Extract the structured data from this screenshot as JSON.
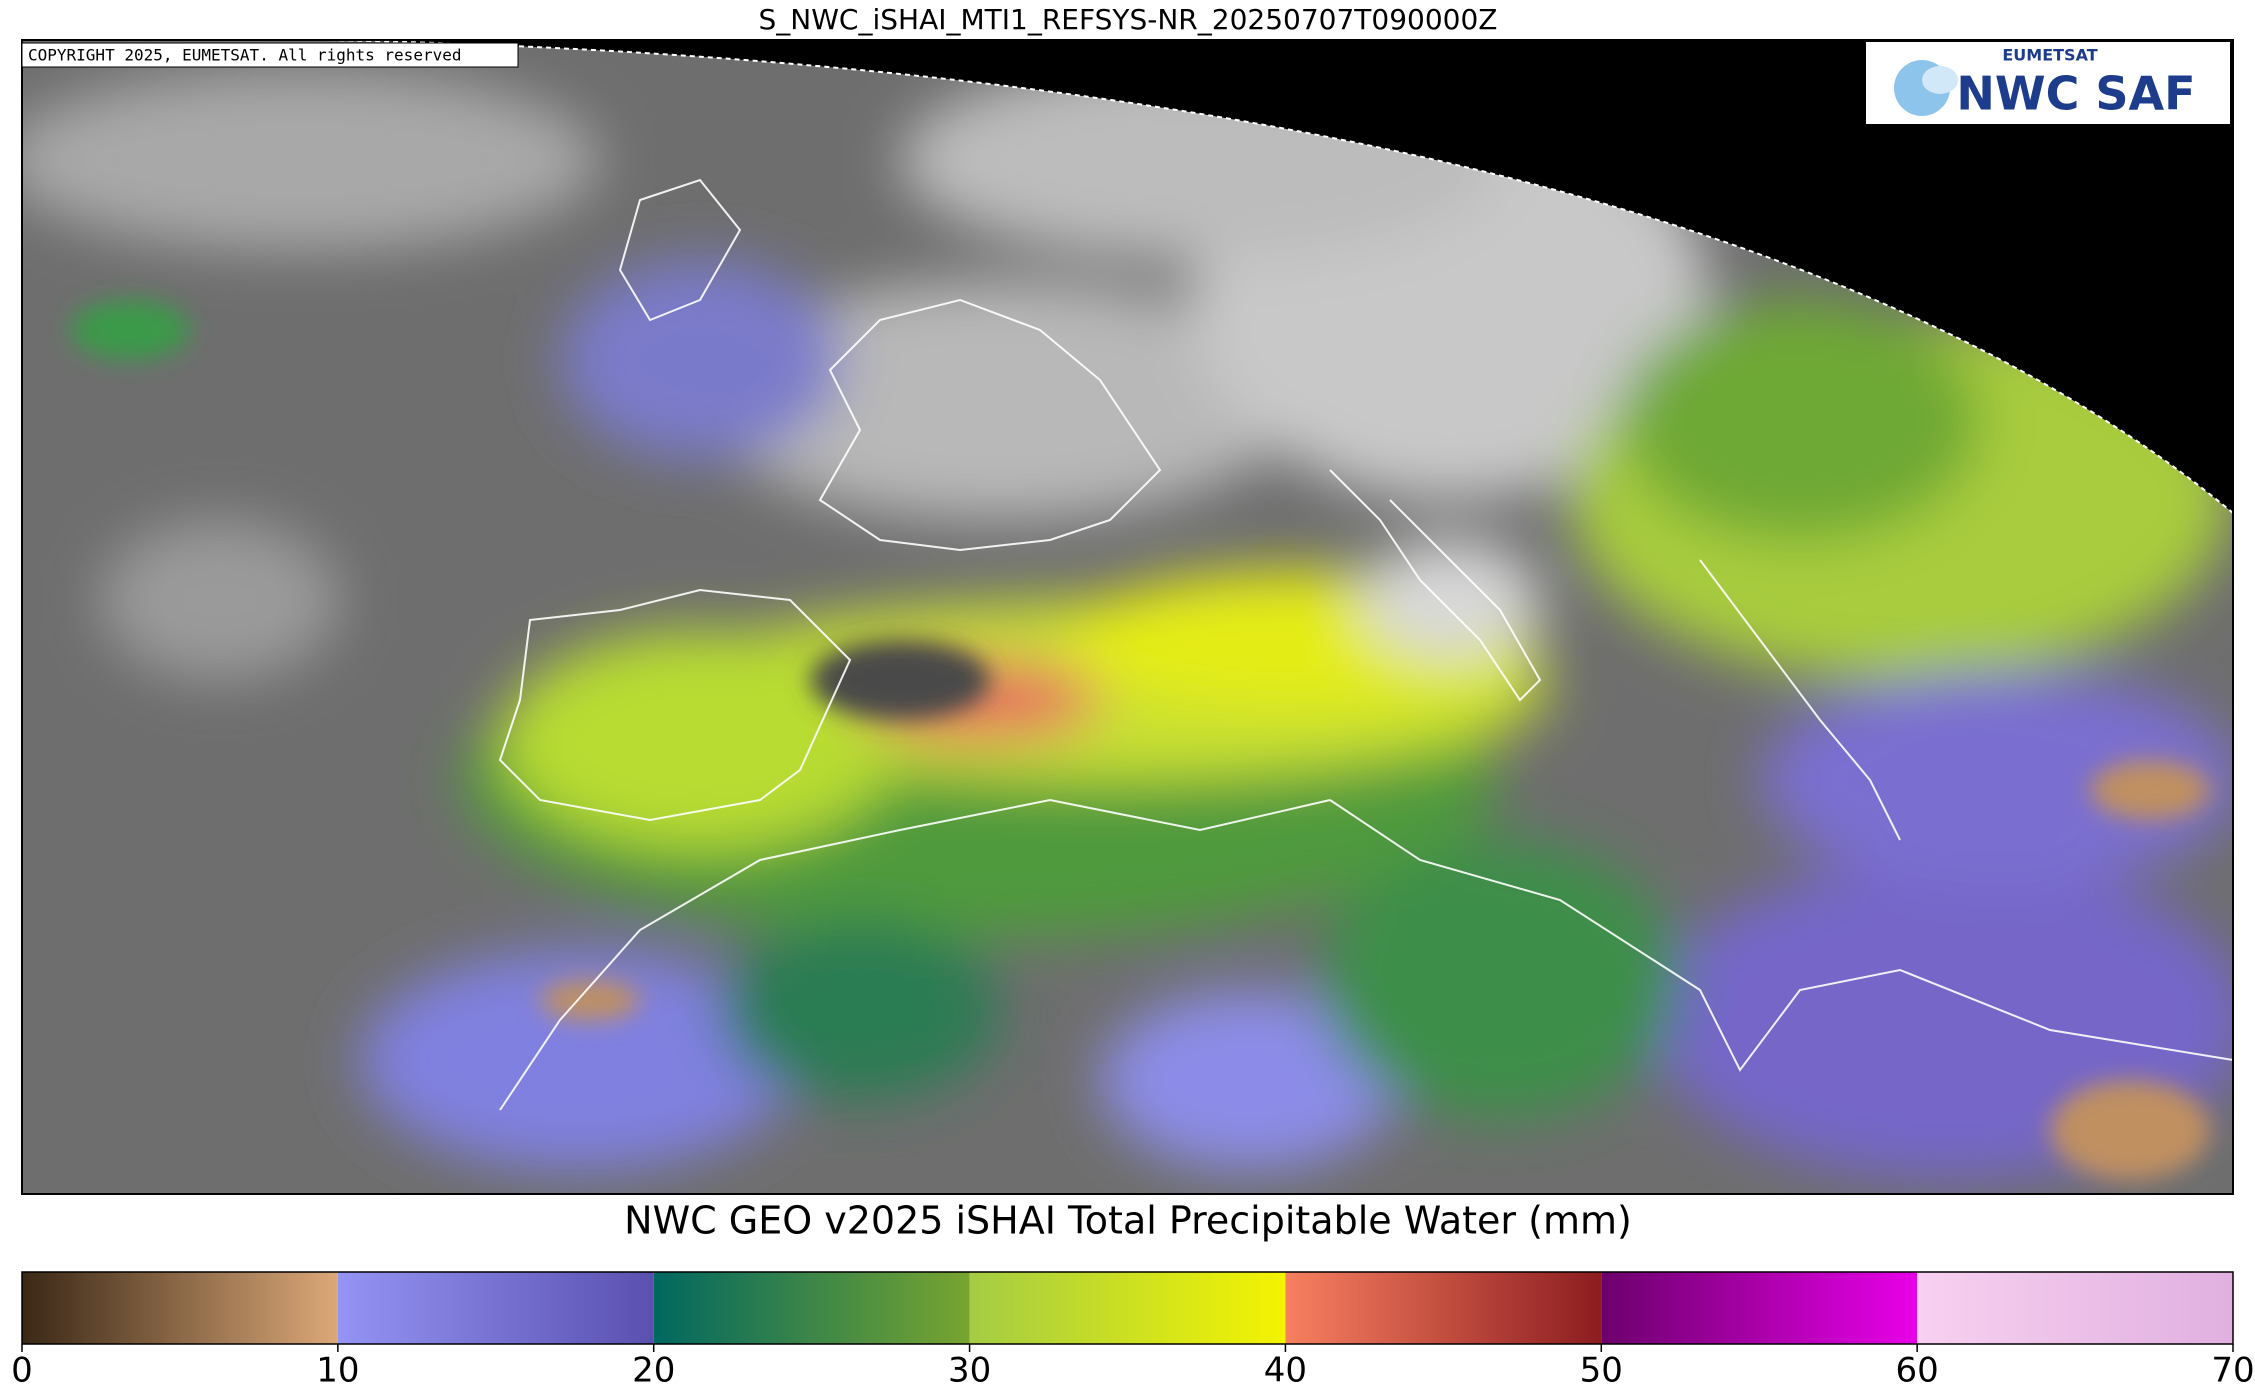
{
  "title": "S_NWC_iSHAI_MTI1_REFSYS-NR_20250707T090000Z",
  "copyright": "COPYRIGHT 2025, EUMETSAT. All rights reserved",
  "logo": {
    "org": "EUMETSAT",
    "name": "NWC SAF"
  },
  "colorbar": {
    "label": "NWC GEO v2025 iSHAI Total Precipitable Water (mm)",
    "lim": [
      0,
      70
    ],
    "ticks": [
      0,
      10,
      20,
      30,
      40,
      50,
      60,
      70
    ],
    "segments": [
      {
        "from": 0,
        "to": 10,
        "colors": [
          "#3a2816",
          "#dca878"
        ]
      },
      {
        "from": 10,
        "to": 20,
        "colors": [
          "#9494f4",
          "#5a50b0"
        ]
      },
      {
        "from": 20,
        "to": 30,
        "colors": [
          "#006860",
          "#78a430"
        ]
      },
      {
        "from": 30,
        "to": 40,
        "colors": [
          "#a4cc44",
          "#f4f400"
        ]
      },
      {
        "from": 40,
        "to": 50,
        "colors": [
          "#f88060",
          "#8c1c20"
        ]
      },
      {
        "from": 50,
        "to": 60,
        "colors": [
          "#6c006c",
          "#e800e8"
        ]
      },
      {
        "from": 60,
        "to": 70,
        "colors": [
          "#f8d0f0",
          "#e0b0e0"
        ]
      }
    ]
  }
}
